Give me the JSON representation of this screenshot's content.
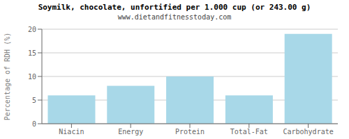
{
  "chart_data": {
    "type": "bar",
    "title": "Soymilk, chocolate, unfortified per 1.000 cup (or 243.00 g)",
    "subtitle": "www.dietandfitnesstoday.com",
    "categories": [
      "Niacin",
      "Energy",
      "Protein",
      "Total-Fat",
      "Carbohydrate"
    ],
    "values": [
      6,
      8,
      10,
      6,
      19
    ],
    "color": "#a8d8e8",
    "ylabel": "Percentage of RDH (%)",
    "ylim": [
      0,
      20
    ],
    "yticks": [
      0,
      5,
      10,
      15,
      20
    ],
    "grid": true
  }
}
